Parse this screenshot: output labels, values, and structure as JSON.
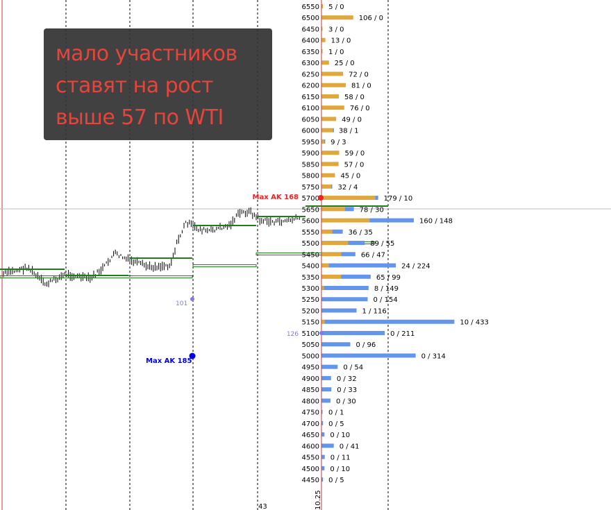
{
  "note": {
    "lines": [
      "мало участников",
      "ставят на рост",
      "выше 57 по WTI"
    ]
  },
  "colors": {
    "calls": "#E0A73A",
    "puts": "#6495ED",
    "level": "#1E7B1E",
    "current_line": "#C8343A",
    "max_call": "#EE2222",
    "max_put": "#0000EE",
    "marker": "#7B7BEF"
  },
  "markers": {
    "max_call_label": "Max AK 168",
    "max_put_label": "Max AK 185",
    "marker_101": "101",
    "marker_126": "126"
  },
  "axis": {
    "bottom_left_label": "43",
    "bottom_date_label": "10.25"
  },
  "chart_data": {
    "type": "bar",
    "orientation": "horizontal",
    "stacked": true,
    "categories": [
      6550,
      6500,
      6450,
      6400,
      6350,
      6300,
      6250,
      6200,
      6150,
      6100,
      6050,
      6000,
      5950,
      5900,
      5850,
      5800,
      5750,
      5700,
      5650,
      5600,
      5550,
      5500,
      5450,
      5400,
      5350,
      5300,
      5250,
      5200,
      5150,
      5100,
      5050,
      5000,
      4950,
      4900,
      4850,
      4800,
      4750,
      4700,
      4650,
      4600,
      4550,
      4500,
      4450
    ],
    "series": [
      {
        "key": "calls",
        "values": [
          5,
          106,
          3,
          13,
          1,
          25,
          72,
          81,
          58,
          76,
          49,
          38,
          9,
          59,
          57,
          45,
          32,
          179,
          78,
          160,
          36,
          89,
          66,
          24,
          65,
          8,
          0,
          1,
          10,
          0,
          0,
          0,
          0,
          0,
          0,
          0,
          0,
          0,
          0,
          0,
          0,
          0,
          0
        ]
      },
      {
        "key": "puts",
        "values": [
          0,
          0,
          0,
          0,
          0,
          0,
          0,
          0,
          0,
          0,
          0,
          1,
          3,
          0,
          0,
          0,
          4,
          10,
          30,
          148,
          35,
          55,
          47,
          224,
          99,
          149,
          154,
          116,
          433,
          211,
          96,
          314,
          54,
          32,
          33,
          30,
          1,
          5,
          10,
          41,
          11,
          10,
          5
        ]
      }
    ],
    "labels": [
      "5 / 0",
      "106 / 0",
      "3 / 0",
      "13 / 0",
      "1 / 0",
      "25 / 0",
      "72 / 0",
      "81 / 0",
      "58 / 0",
      "76 / 0",
      "49 / 0",
      "38 / 1",
      "9 / 3",
      "59 / 0",
      "57 / 0",
      "45 / 0",
      "32 / 4",
      "179 / 10",
      "78 / 30",
      "160 / 148",
      "36 / 35",
      "89 / 55",
      "66 / 47",
      "24 / 224",
      "65 / 99",
      "8 / 149",
      "0 / 154",
      "1 / 116",
      "10 / 433",
      "0 / 211",
      "0 / 96",
      "0 / 314",
      "0 / 54",
      "0 / 32",
      "0 / 33",
      "0 / 30",
      "0 / 1",
      "0 / 5",
      "0 / 10",
      "0 / 41",
      "0 / 11",
      "0 / 10",
      "0 / 5"
    ]
  }
}
